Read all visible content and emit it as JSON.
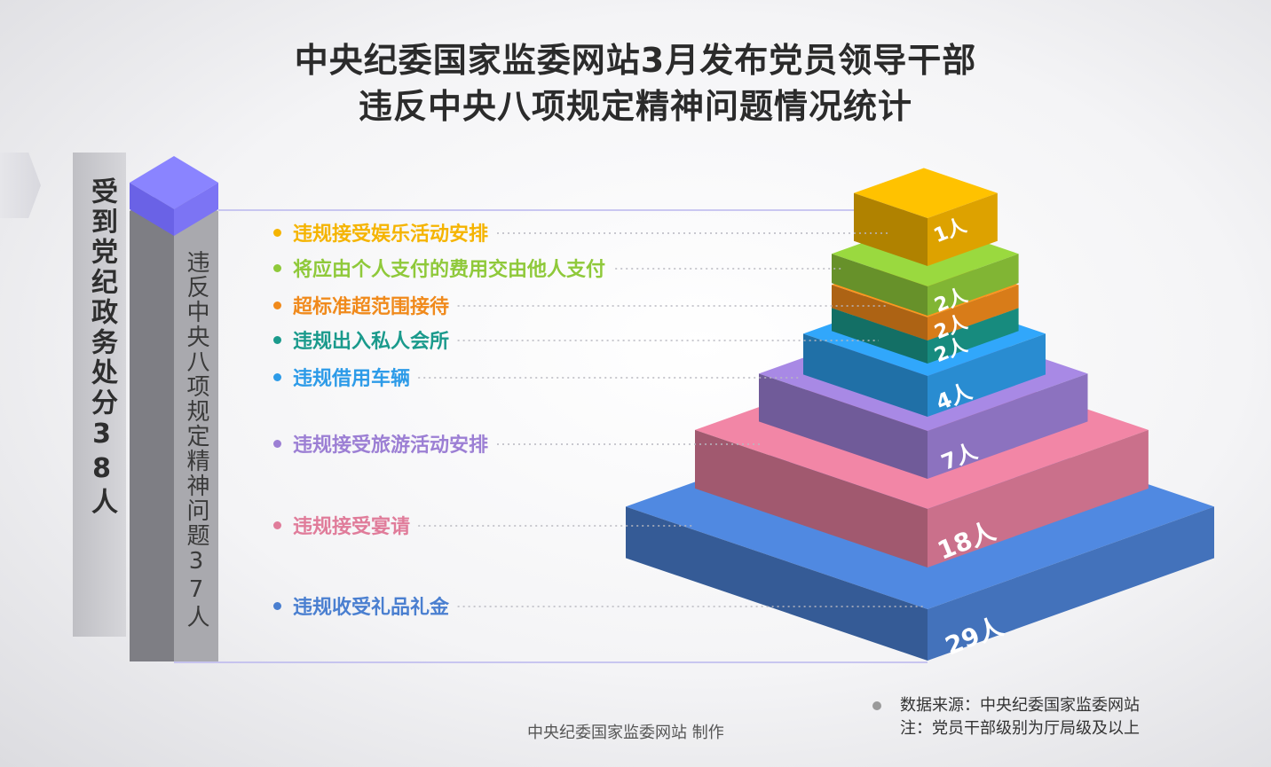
{
  "title_line1": "中央纪委国家监委网站3月发布党员领导干部",
  "title_line2": "违反中央八项规定精神问题情况统计",
  "left_total_label": "受到党纪政务处分38人",
  "inner_total_label": "违反中央八项规定精神问题37人",
  "source": "数据来源：中央纪委国家监委网站",
  "note": "注：党员干部级别为厅局级及以上",
  "maker": "中央纪委国家监委网站 制作",
  "chart_data": {
    "type": "bar",
    "title": "中央纪委国家监委网站3月发布党员领导干部违反中央八项规定精神问题情况统计",
    "unit": "人",
    "categories": [
      "违规接受娱乐活动安排",
      "将应由个人支付的费用交由他人支付",
      "超标准超范围接待",
      "违规出入私人会所",
      "违规借用车辆",
      "违规接受旅游活动安排",
      "违规接受宴请",
      "违规收受礼品礼金"
    ],
    "values": [
      1,
      2,
      2,
      2,
      4,
      7,
      18,
      29
    ],
    "value_labels": [
      "1人",
      "2人",
      "2人",
      "2人",
      "4人",
      "7人",
      "18人",
      "29人"
    ],
    "colors": [
      "#f5b400",
      "#8fc93a",
      "#f08a1c",
      "#1a9a8c",
      "#2d9be8",
      "#9c7fd4",
      "#e07c9a",
      "#4a7fd0"
    ]
  }
}
